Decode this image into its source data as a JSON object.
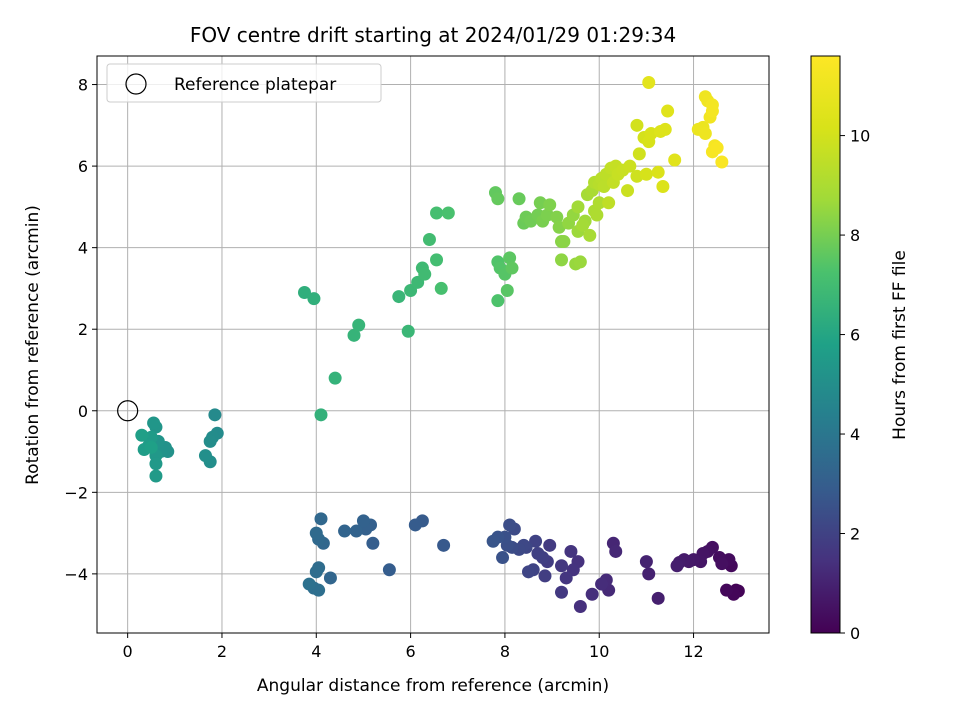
{
  "chart_data": {
    "type": "scatter",
    "title": "FOV centre drift starting at 2024/01/29 01:29:34",
    "xlabel": "Angular distance from reference (arcmin)",
    "ylabel": "Rotation from reference (arcmin)",
    "colorbar_label": "Hours from first FF file",
    "xlim": [
      -0.65,
      13.6
    ],
    "ylim": [
      -5.45,
      8.7
    ],
    "x_ticks": [
      0,
      2,
      4,
      6,
      8,
      10,
      12
    ],
    "x_tick_labels": [
      "0",
      "2",
      "4",
      "6",
      "8",
      "10",
      "12"
    ],
    "y_ticks": [
      -4,
      -2,
      0,
      2,
      4,
      6,
      8
    ],
    "y_tick_labels": [
      "−4",
      "−2",
      "0",
      "2",
      "4",
      "6",
      "8"
    ],
    "colorbar_range": [
      0,
      11.6
    ],
    "colorbar_ticks": [
      0,
      2,
      4,
      6,
      8,
      10
    ],
    "colorbar_tick_labels": [
      "0",
      "2",
      "4",
      "6",
      "8",
      "10"
    ],
    "colormap": "viridis",
    "grid": true,
    "legend": {
      "label": "Reference platepar",
      "position": "upper-left"
    },
    "reference_point": {
      "x": 0,
      "y": 0
    },
    "series": [
      {
        "points": [
          [
            12.9,
            -4.4,
            0.05
          ],
          [
            12.95,
            -4.42,
            0.1
          ],
          [
            12.85,
            -4.5,
            0.15
          ],
          [
            12.7,
            -4.4,
            0.2
          ],
          [
            12.8,
            -3.8,
            0.25
          ],
          [
            12.75,
            -3.65,
            0.3
          ],
          [
            12.55,
            -3.6,
            0.35
          ],
          [
            12.6,
            -3.75,
            0.4
          ],
          [
            12.4,
            -3.35,
            0.45
          ],
          [
            12.3,
            -3.45,
            0.5
          ],
          [
            12.2,
            -3.5,
            0.55
          ],
          [
            12.15,
            -3.7,
            0.6
          ],
          [
            12.0,
            -3.65,
            0.65
          ],
          [
            11.9,
            -3.7,
            0.7
          ],
          [
            11.8,
            -3.65,
            0.75
          ],
          [
            11.7,
            -3.72,
            0.8
          ],
          [
            11.65,
            -3.8,
            0.85
          ],
          [
            11.25,
            -4.6,
            0.9
          ],
          [
            11.05,
            -4.0,
            0.95
          ],
          [
            11.0,
            -3.7,
            1.0
          ],
          [
            10.3,
            -3.25,
            1.1
          ],
          [
            10.35,
            -3.45,
            1.15
          ],
          [
            10.2,
            -4.4,
            1.2
          ],
          [
            10.15,
            -4.15,
            1.25
          ],
          [
            10.05,
            -4.25,
            1.3
          ],
          [
            9.85,
            -4.5,
            1.35
          ],
          [
            9.6,
            -4.8,
            1.4
          ],
          [
            9.55,
            -3.7,
            1.45
          ],
          [
            9.45,
            -3.9,
            1.5
          ],
          [
            9.4,
            -3.45,
            1.55
          ],
          [
            9.3,
            -4.1,
            1.6
          ],
          [
            9.2,
            -3.8,
            1.65
          ],
          [
            9.2,
            -4.45,
            1.7
          ],
          [
            8.95,
            -3.3,
            1.75
          ],
          [
            8.9,
            -3.7,
            1.8
          ],
          [
            8.85,
            -4.05,
            1.85
          ],
          [
            8.8,
            -3.6,
            1.9
          ],
          [
            8.7,
            -3.5,
            1.95
          ],
          [
            8.65,
            -3.2,
            2.0
          ],
          [
            8.6,
            -3.9,
            2.05
          ],
          [
            8.5,
            -3.95,
            2.1
          ],
          [
            8.45,
            -3.35,
            2.15
          ],
          [
            8.4,
            -3.3,
            2.2
          ],
          [
            8.3,
            -3.4,
            2.25
          ],
          [
            8.2,
            -2.9,
            2.3
          ],
          [
            8.15,
            -3.35,
            2.35
          ],
          [
            8.1,
            -2.8,
            2.4
          ],
          [
            8.05,
            -3.3,
            2.45
          ],
          [
            8.0,
            -3.1,
            2.5
          ],
          [
            7.95,
            -3.6,
            2.55
          ],
          [
            7.85,
            -3.1,
            2.6
          ],
          [
            7.75,
            -3.2,
            2.65
          ],
          [
            6.7,
            -3.3,
            2.8
          ],
          [
            6.25,
            -2.7,
            2.85
          ],
          [
            6.1,
            -2.8,
            2.9
          ],
          [
            5.55,
            -3.9,
            2.95
          ],
          [
            5.2,
            -3.25,
            3.0
          ],
          [
            5.15,
            -2.8,
            3.05
          ],
          [
            5.05,
            -2.9,
            3.1
          ],
          [
            5.0,
            -2.7,
            3.15
          ],
          [
            4.85,
            -2.95,
            3.2
          ],
          [
            4.6,
            -2.95,
            3.25
          ],
          [
            4.3,
            -4.1,
            3.3
          ],
          [
            4.15,
            -3.25,
            3.35
          ],
          [
            4.1,
            -2.65,
            3.4
          ],
          [
            4.05,
            -3.15,
            3.45
          ],
          [
            4.0,
            -3.0,
            3.5
          ],
          [
            4.05,
            -3.85,
            3.55
          ],
          [
            4.0,
            -3.95,
            3.6
          ],
          [
            3.95,
            -4.35,
            3.65
          ],
          [
            4.05,
            -4.4,
            3.7
          ],
          [
            3.85,
            -4.25,
            3.75
          ],
          [
            1.85,
            -0.1,
            4.8
          ],
          [
            1.9,
            -0.55,
            4.85
          ],
          [
            1.8,
            -0.65,
            4.9
          ],
          [
            1.75,
            -0.75,
            4.95
          ],
          [
            1.75,
            -1.25,
            5.0
          ],
          [
            1.65,
            -1.1,
            5.05
          ],
          [
            0.85,
            -1.0,
            5.1
          ],
          [
            0.8,
            -0.9,
            5.15
          ],
          [
            0.7,
            -1.0,
            5.2
          ],
          [
            0.65,
            -0.75,
            5.25
          ],
          [
            0.6,
            -0.4,
            5.3
          ],
          [
            0.55,
            -0.3,
            5.35
          ],
          [
            0.6,
            -1.1,
            5.4
          ],
          [
            0.6,
            -1.3,
            5.45
          ],
          [
            0.6,
            -1.6,
            5.5
          ],
          [
            0.5,
            -0.65,
            5.55
          ],
          [
            0.45,
            -0.85,
            5.6
          ],
          [
            0.35,
            -0.95,
            5.65
          ],
          [
            0.3,
            -0.6,
            5.7
          ],
          [
            0.5,
            -0.9,
            5.75
          ],
          [
            3.75,
            2.9,
            6.4
          ],
          [
            3.95,
            2.75,
            6.45
          ],
          [
            4.1,
            -0.1,
            6.5
          ],
          [
            4.4,
            0.8,
            6.55
          ],
          [
            4.8,
            1.85,
            6.6
          ],
          [
            4.9,
            2.1,
            6.65
          ],
          [
            5.75,
            2.8,
            6.7
          ],
          [
            5.95,
            1.95,
            6.75
          ],
          [
            6.0,
            2.95,
            6.8
          ],
          [
            6.15,
            3.15,
            6.85
          ],
          [
            6.25,
            3.5,
            6.9
          ],
          [
            6.3,
            3.35,
            6.95
          ],
          [
            6.4,
            4.2,
            7.0
          ],
          [
            6.55,
            3.7,
            7.05
          ],
          [
            6.55,
            4.85,
            7.1
          ],
          [
            6.65,
            3.0,
            7.15
          ],
          [
            6.8,
            4.85,
            7.2
          ],
          [
            7.85,
            2.7,
            7.3
          ],
          [
            7.85,
            3.65,
            7.35
          ],
          [
            7.9,
            3.5,
            7.4
          ],
          [
            8.0,
            3.35,
            7.45
          ],
          [
            8.05,
            2.95,
            7.5
          ],
          [
            8.1,
            3.75,
            7.55
          ],
          [
            8.15,
            3.5,
            7.6
          ],
          [
            7.8,
            5.35,
            7.65
          ],
          [
            7.85,
            5.2,
            7.7
          ],
          [
            8.3,
            5.2,
            7.75
          ],
          [
            8.4,
            4.6,
            7.8
          ],
          [
            8.45,
            4.75,
            7.85
          ],
          [
            8.55,
            4.65,
            7.9
          ],
          [
            8.7,
            4.8,
            7.95
          ],
          [
            8.75,
            5.1,
            8.0
          ],
          [
            8.8,
            4.65,
            8.05
          ],
          [
            8.9,
            4.8,
            8.1
          ],
          [
            8.95,
            5.05,
            8.15
          ],
          [
            9.1,
            4.75,
            8.2
          ],
          [
            9.15,
            4.5,
            8.25
          ],
          [
            9.2,
            4.15,
            8.3
          ],
          [
            9.25,
            4.15,
            8.35
          ],
          [
            9.2,
            3.7,
            8.4
          ],
          [
            9.35,
            4.6,
            8.45
          ],
          [
            9.45,
            4.8,
            8.5
          ],
          [
            9.5,
            3.6,
            8.55
          ],
          [
            9.6,
            3.65,
            8.6
          ],
          [
            9.55,
            4.4,
            8.65
          ],
          [
            9.7,
            4.65,
            8.7
          ],
          [
            9.55,
            5.0,
            8.75
          ],
          [
            9.65,
            4.55,
            8.8
          ],
          [
            9.75,
            5.3,
            8.85
          ],
          [
            9.8,
            4.3,
            8.9
          ],
          [
            9.85,
            5.4,
            8.95
          ],
          [
            9.9,
            4.9,
            9.0
          ],
          [
            9.95,
            4.8,
            9.05
          ],
          [
            10.0,
            5.1,
            9.1
          ],
          [
            9.9,
            5.6,
            9.2
          ],
          [
            10.0,
            5.55,
            9.3
          ],
          [
            10.05,
            5.7,
            9.35
          ],
          [
            10.1,
            5.5,
            9.4
          ],
          [
            10.15,
            5.8,
            9.45
          ],
          [
            10.2,
            5.1,
            9.5
          ],
          [
            10.25,
            5.95,
            9.55
          ],
          [
            10.3,
            5.6,
            9.6
          ],
          [
            10.35,
            6.0,
            9.65
          ],
          [
            10.4,
            5.8,
            9.7
          ],
          [
            10.5,
            5.9,
            9.75
          ],
          [
            10.6,
            5.4,
            9.8
          ],
          [
            10.65,
            6.0,
            9.85
          ],
          [
            10.8,
            5.75,
            9.9
          ],
          [
            10.85,
            6.3,
            9.95
          ],
          [
            10.8,
            7.0,
            10.0
          ],
          [
            10.95,
            6.7,
            10.05
          ],
          [
            11.0,
            5.8,
            10.1
          ],
          [
            11.05,
            6.6,
            10.15
          ],
          [
            11.1,
            6.8,
            10.2
          ],
          [
            11.25,
            5.85,
            10.25
          ],
          [
            11.35,
            5.5,
            10.3
          ],
          [
            11.3,
            6.85,
            10.35
          ],
          [
            11.4,
            6.9,
            10.4
          ],
          [
            11.45,
            7.35,
            10.45
          ],
          [
            11.6,
            6.15,
            10.5
          ],
          [
            11.05,
            8.05,
            10.6
          ],
          [
            12.1,
            6.9,
            10.9
          ],
          [
            12.2,
            6.95,
            10.95
          ],
          [
            12.25,
            6.8,
            11.0
          ],
          [
            12.25,
            7.7,
            11.05
          ],
          [
            12.3,
            7.6,
            11.1
          ],
          [
            12.35,
            7.2,
            11.15
          ],
          [
            12.4,
            7.5,
            11.2
          ],
          [
            12.4,
            7.35,
            11.25
          ],
          [
            12.45,
            6.5,
            11.3
          ],
          [
            12.4,
            6.35,
            11.35
          ],
          [
            12.5,
            6.45,
            11.4
          ],
          [
            12.6,
            6.1,
            11.45
          ]
        ]
      }
    ]
  }
}
